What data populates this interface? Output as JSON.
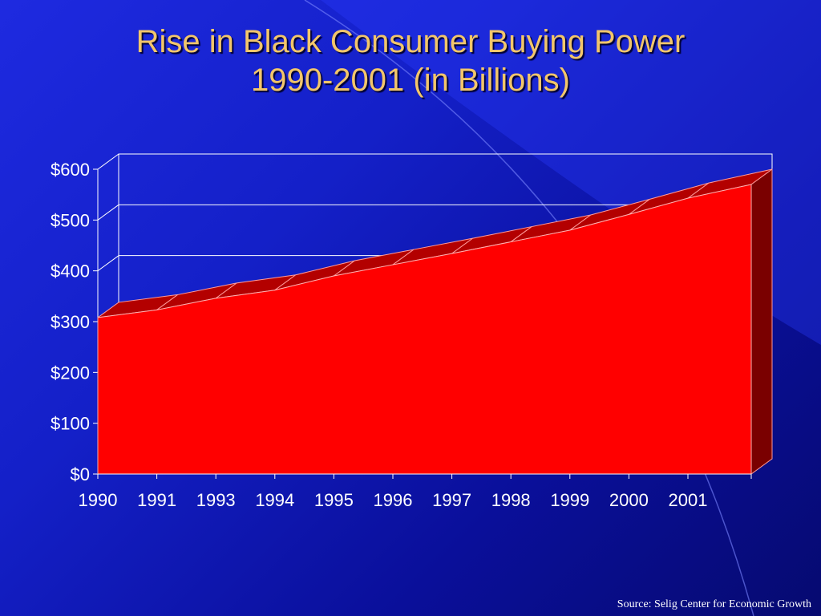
{
  "slide": {
    "title_line1": "Rise in Black Consumer Buying Power",
    "title_line2": "1990-2001 (in Billions)",
    "source": "Source: Selig Center for Economic Growth"
  },
  "colors": {
    "area_front": "#ff0000",
    "area_top": "#b30000",
    "area_side": "#7a0000",
    "title": "#f2c66b"
  },
  "chart_data": {
    "type": "area",
    "title": "Rise in Black Consumer Buying Power 1990-2001 (in Billions)",
    "categories": [
      "1990",
      "1991",
      "1993",
      "1994",
      "1995",
      "1996",
      "1997",
      "1998",
      "1999",
      "2000",
      "2001"
    ],
    "values": [
      308,
      323,
      346,
      362,
      390,
      412,
      434,
      457,
      480,
      511,
      543
    ],
    "end_value": 570,
    "y_ticks": [
      "$0",
      "$100",
      "$200",
      "$300",
      "$400",
      "$500",
      "$600"
    ],
    "ylim": [
      0,
      600
    ],
    "grid": true,
    "legend": "none",
    "three_d": true
  }
}
